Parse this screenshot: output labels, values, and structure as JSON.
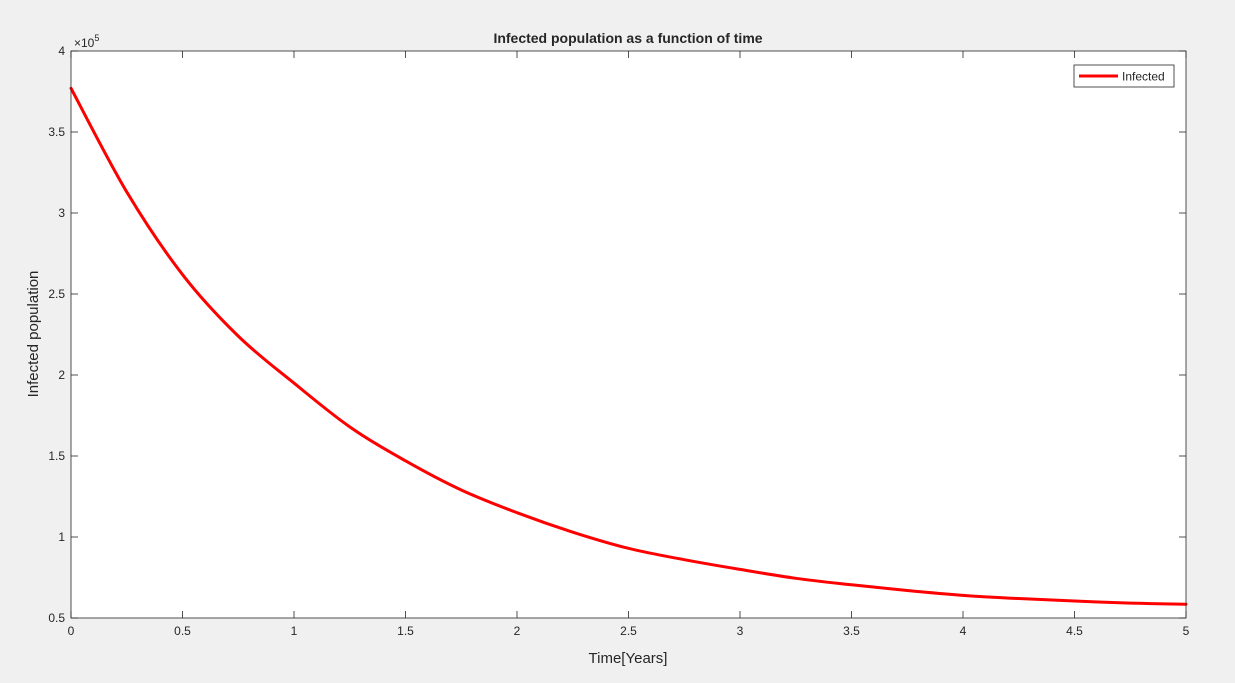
{
  "chart_data": {
    "type": "line",
    "title": "Infected population as a function of time",
    "xlabel": "Time[Years]",
    "ylabel": "Infected population",
    "y_exponent_label": "×10",
    "y_exponent_power": "5",
    "xlim": [
      0,
      5
    ],
    "ylim": [
      50000,
      400000
    ],
    "x_ticks": [
      0,
      0.5,
      1,
      1.5,
      2,
      2.5,
      3,
      3.5,
      4,
      4.5,
      5
    ],
    "x_tick_labels": [
      "0",
      "0.5",
      "1",
      "1.5",
      "2",
      "2.5",
      "3",
      "3.5",
      "4",
      "4.5",
      "5"
    ],
    "y_ticks": [
      50000,
      100000,
      150000,
      200000,
      250000,
      300000,
      350000,
      400000
    ],
    "y_tick_labels": [
      "0.5",
      "1",
      "1.5",
      "2",
      "2.5",
      "3",
      "3.5",
      "4"
    ],
    "grid": false,
    "legend_position": "top-right",
    "series": [
      {
        "name": "Infected",
        "color": "#ff0000",
        "x": [
          0,
          0.25,
          0.5,
          0.75,
          1,
          1.25,
          1.5,
          1.75,
          2,
          2.25,
          2.5,
          2.75,
          3,
          3.25,
          3.5,
          3.75,
          4,
          4.25,
          4.5,
          4.75,
          5
        ],
        "y": [
          377000,
          313000,
          262000,
          224000,
          195000,
          168000,
          147000,
          129000,
          115000,
          103000,
          93000,
          86000,
          80000,
          74500,
          70500,
          67000,
          64000,
          62000,
          60500,
          59200,
          58500
        ]
      }
    ]
  }
}
